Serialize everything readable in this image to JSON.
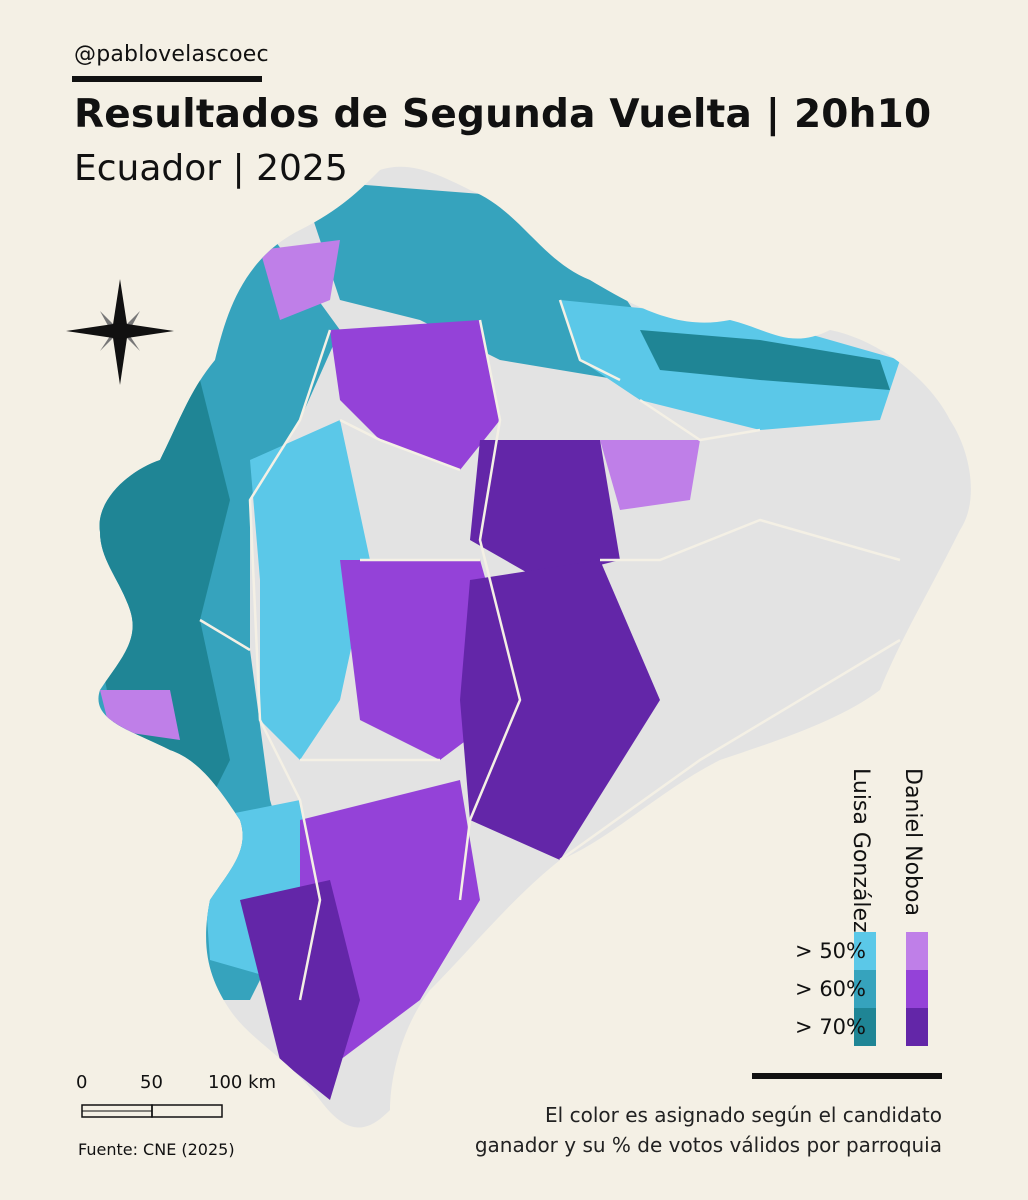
{
  "header": {
    "handle": "@pablovelascoec",
    "title": "Resultados de Segunda Vuelta | 20h10",
    "subtitle": "Ecuador | 2025"
  },
  "legend": {
    "candidates": [
      {
        "name": "Luisa González",
        "colors": [
          "#5bc8e8",
          "#36a3bd",
          "#1f8595"
        ]
      },
      {
        "name": "Daniel Noboa",
        "colors": [
          "#bf7fe8",
          "#9442d8",
          "#6326a8"
        ]
      }
    ],
    "bins": [
      "> 50%",
      "> 60%",
      "> 70%"
    ],
    "no_data_color": "#e3e3e3"
  },
  "note": {
    "line1": "El color es asignado según el candidato",
    "line2": "ganador y su % de votos válidos por parroquia"
  },
  "scale": {
    "ticks": [
      "0",
      "50",
      "100 km"
    ]
  },
  "source": "Fuente: CNE (2025)",
  "map": {
    "features": [
      "north-arrow",
      "province-boundaries",
      "parish-choropleth"
    ]
  }
}
